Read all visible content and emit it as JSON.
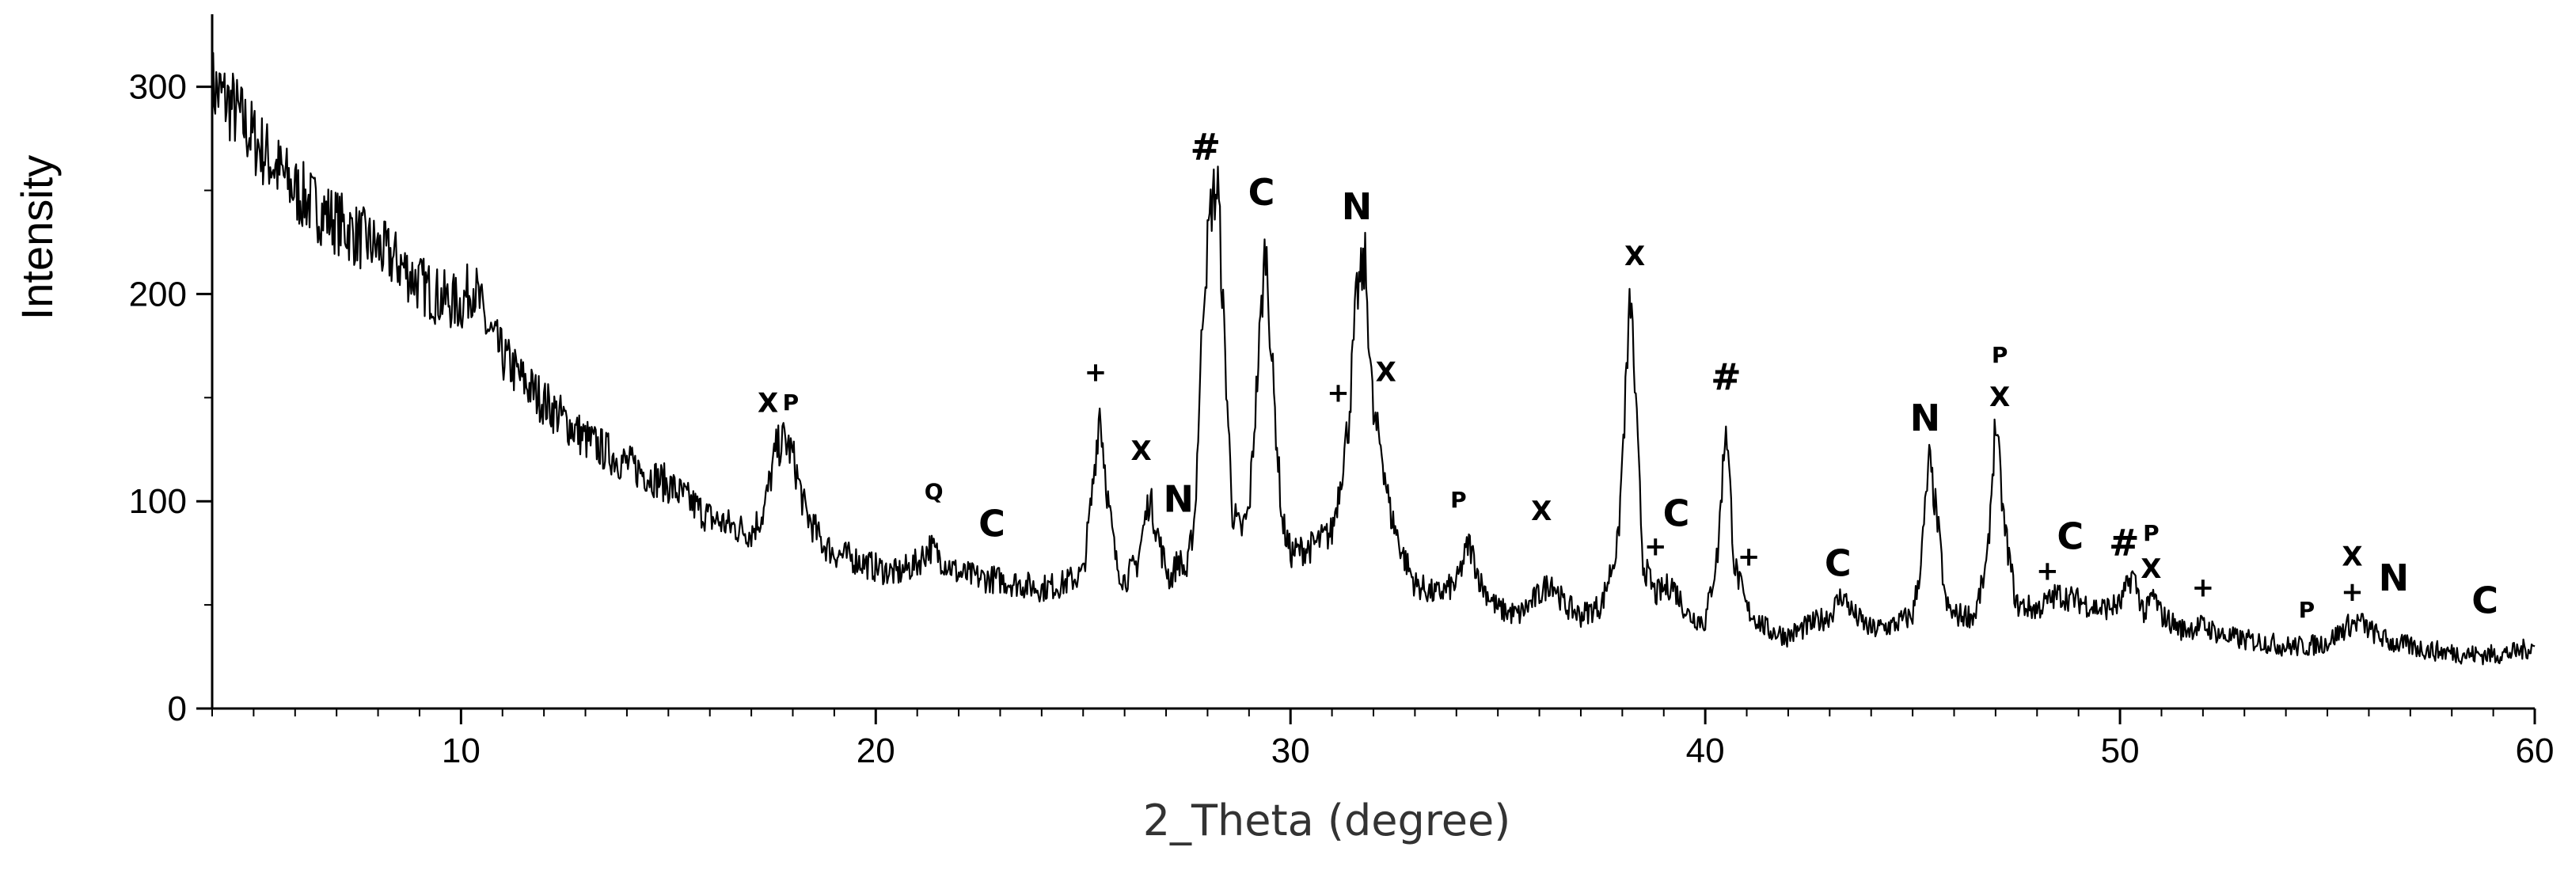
{
  "chart_data": {
    "type": "line",
    "xlabel": "2_Theta (degree)",
    "ylabel": "Intensity",
    "xlim": [
      4,
      60
    ],
    "ylim": [
      0,
      335
    ],
    "x_ticks": [
      10,
      20,
      30,
      40,
      50,
      60
    ],
    "y_ticks": [
      0,
      100,
      200,
      300
    ],
    "x_tick_labels": [
      "10",
      "20",
      "30",
      "40",
      "50",
      "60"
    ],
    "y_tick_labels": [
      "0",
      "100",
      "200",
      "300"
    ],
    "grid": false,
    "legend": "none",
    "series": [
      {
        "x": [
          4.0,
          4.5,
          5.0,
          5.5,
          6.0,
          6.5,
          7.0,
          7.5,
          8.0,
          8.5,
          9.0,
          9.5,
          10.0,
          10.3,
          10.6,
          11.0,
          11.5,
          12.0,
          13.0,
          14.0,
          15.0,
          15.5,
          16.0,
          16.5,
          17.0,
          17.3,
          17.6,
          17.8,
          18.0,
          18.3,
          18.7,
          19.0,
          19.5,
          20.0,
          20.5,
          21.0,
          21.3,
          21.6,
          22.0,
          22.5,
          23.0,
          23.5,
          24.0,
          24.5,
          25.0,
          25.2,
          25.4,
          25.6,
          25.8,
          26.0,
          26.3,
          26.6,
          26.9,
          27.1,
          27.3,
          27.5,
          27.7,
          27.9,
          28.1,
          28.25,
          28.4,
          28.6,
          28.8,
          29.0,
          29.2,
          29.4,
          29.6,
          29.8,
          30.0,
          30.5,
          31.0,
          31.2,
          31.4,
          31.6,
          31.8,
          32.0,
          32.2,
          32.4,
          32.7,
          33.0,
          33.5,
          34.0,
          34.3,
          34.6,
          35.0,
          35.5,
          36.0,
          36.3,
          36.6,
          37.0,
          37.5,
          37.9,
          38.2,
          38.5,
          38.8,
          39.2,
          39.6,
          40.0,
          40.3,
          40.5,
          40.7,
          41.0,
          41.5,
          42.0,
          42.5,
          43.0,
          43.3,
          43.6,
          44.0,
          44.5,
          45.0,
          45.2,
          45.4,
          45.6,
          45.8,
          46.0,
          46.5,
          46.8,
          47.0,
          47.2,
          47.5,
          48.0,
          48.5,
          49.0,
          49.5,
          50.0,
          50.3,
          50.6,
          50.8,
          51.0,
          51.5,
          52.0,
          52.5,
          53.0,
          53.5,
          54.0,
          54.5,
          55.0,
          55.5,
          55.8,
          56.0,
          56.5,
          57.0,
          57.5,
          58.0,
          58.5,
          59.0,
          59.5,
          60.0
        ],
        "values": [
          300,
          290,
          275,
          262,
          250,
          242,
          235,
          228,
          222,
          215,
          205,
          198,
          195,
          205,
          185,
          170,
          158,
          148,
          130,
          118,
          108,
          100,
          92,
          88,
          85,
          95,
          125,
          130,
          122,
          95,
          80,
          75,
          72,
          68,
          65,
          70,
          78,
          72,
          65,
          63,
          62,
          60,
          58,
          60,
          65,
          100,
          145,
          100,
          70,
          62,
          70,
          102,
          75,
          62,
          72,
          65,
          95,
          200,
          245,
          252,
          180,
          95,
          85,
          95,
          160,
          225,
          150,
          90,
          75,
          78,
          85,
          110,
          138,
          200,
          215,
          140,
          125,
          95,
          75,
          60,
          55,
          60,
          80,
          60,
          48,
          45,
          55,
          62,
          50,
          45,
          50,
          80,
          200,
          70,
          55,
          60,
          45,
          42,
          75,
          140,
          70,
          48,
          38,
          35,
          40,
          45,
          55,
          45,
          38,
          40,
          45,
          70,
          120,
          90,
          50,
          45,
          45,
          70,
          140,
          90,
          50,
          48,
          55,
          52,
          48,
          50,
          65,
          45,
          55,
          45,
          38,
          40,
          35,
          33,
          32,
          30,
          30,
          32,
          40,
          42,
          38,
          32,
          30,
          28,
          27,
          26,
          26,
          27,
          30
        ]
      }
    ],
    "annotations": [
      {
        "text": "X",
        "x": 17.4,
        "y": 143,
        "size": "mid"
      },
      {
        "text": "P",
        "x": 17.95,
        "y": 144,
        "size": "small"
      },
      {
        "text": "Q",
        "x": 21.4,
        "y": 101,
        "size": "small"
      },
      {
        "text": "C",
        "x": 22.8,
        "y": 83,
        "size": "big"
      },
      {
        "text": "+",
        "x": 25.3,
        "y": 158,
        "size": "mid"
      },
      {
        "text": "X",
        "x": 26.4,
        "y": 120,
        "size": "mid"
      },
      {
        "text": "N",
        "x": 27.3,
        "y": 95,
        "size": "big"
      },
      {
        "text": "#",
        "x": 27.95,
        "y": 265,
        "size": "big"
      },
      {
        "text": "C",
        "x": 29.3,
        "y": 243,
        "size": "big"
      },
      {
        "text": "N",
        "x": 31.6,
        "y": 236,
        "size": "big"
      },
      {
        "text": "+",
        "x": 31.15,
        "y": 148,
        "size": "mid"
      },
      {
        "text": "X",
        "x": 32.3,
        "y": 158,
        "size": "mid"
      },
      {
        "text": "P",
        "x": 34.05,
        "y": 97,
        "size": "small"
      },
      {
        "text": "X",
        "x": 36.05,
        "y": 91,
        "size": "mid"
      },
      {
        "text": "X",
        "x": 38.3,
        "y": 214,
        "size": "mid"
      },
      {
        "text": "+",
        "x": 38.8,
        "y": 74,
        "size": "mid"
      },
      {
        "text": "C",
        "x": 39.3,
        "y": 88,
        "size": "big"
      },
      {
        "text": "#",
        "x": 40.5,
        "y": 154,
        "size": "big"
      },
      {
        "text": "+",
        "x": 41.05,
        "y": 69,
        "size": "mid"
      },
      {
        "text": "C",
        "x": 43.2,
        "y": 64,
        "size": "big"
      },
      {
        "text": "N",
        "x": 45.3,
        "y": 134,
        "size": "big"
      },
      {
        "text": "P",
        "x": 47.1,
        "y": 167,
        "size": "small"
      },
      {
        "text": "X",
        "x": 47.1,
        "y": 146,
        "size": "mid"
      },
      {
        "text": "+",
        "x": 48.25,
        "y": 62,
        "size": "mid"
      },
      {
        "text": "C",
        "x": 48.8,
        "y": 77,
        "size": "big"
      },
      {
        "text": "#",
        "x": 50.1,
        "y": 74,
        "size": "big"
      },
      {
        "text": "P",
        "x": 50.75,
        "y": 81,
        "size": "small"
      },
      {
        "text": "X",
        "x": 50.75,
        "y": 63,
        "size": "mid"
      },
      {
        "text": "+",
        "x": 52.0,
        "y": 54,
        "size": "mid"
      },
      {
        "text": "P",
        "x": 54.5,
        "y": 44,
        "size": "small"
      },
      {
        "text": "X",
        "x": 55.6,
        "y": 69,
        "size": "mid"
      },
      {
        "text": "+",
        "x": 55.6,
        "y": 52,
        "size": "mid"
      },
      {
        "text": "N",
        "x": 56.6,
        "y": 57,
        "size": "big"
      },
      {
        "text": "C",
        "x": 58.8,
        "y": 46,
        "size": "big"
      }
    ]
  }
}
